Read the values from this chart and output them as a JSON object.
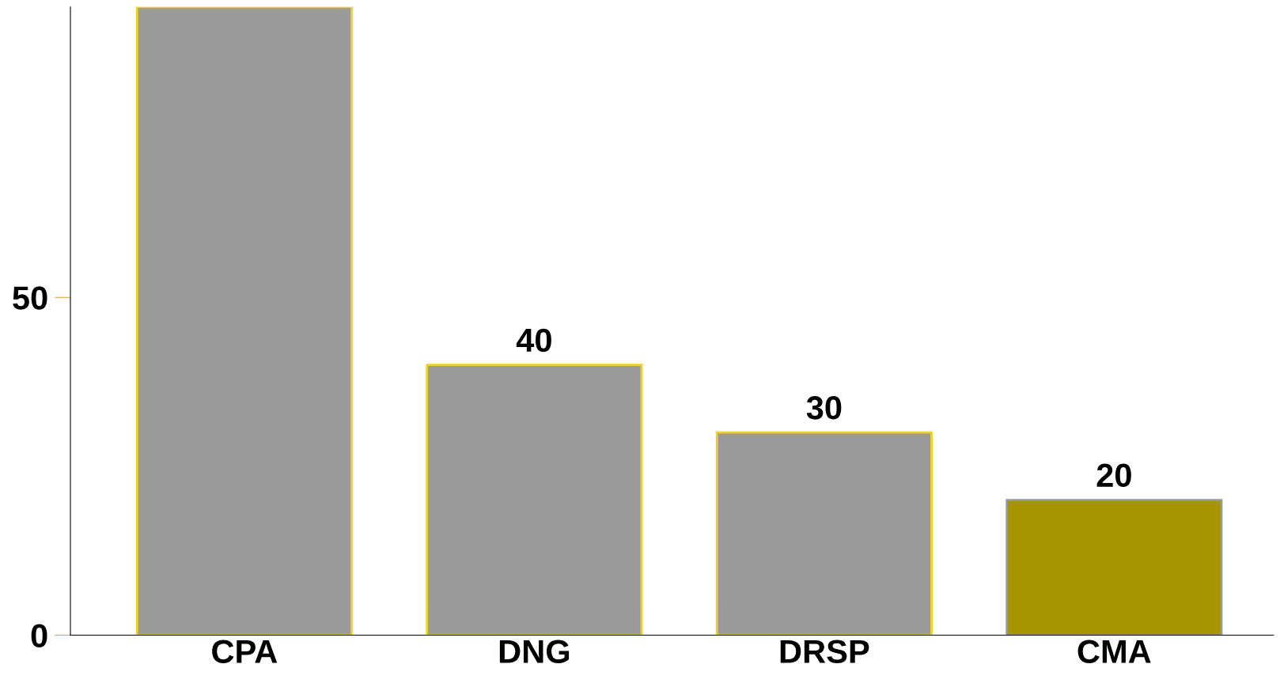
{
  "chart_data": {
    "type": "bar",
    "categories": [
      "CPA",
      "DNG",
      "DRSP",
      "CMA"
    ],
    "values": [
      93,
      40,
      30,
      20
    ],
    "colors": [
      "#9a9a9a",
      "#9a9a9a",
      "#9a9a9a",
      "#a69400"
    ],
    "value_labels": [
      null,
      "40",
      "30",
      "20"
    ],
    "ylim": [
      0,
      93
    ],
    "yticks": [
      0,
      50
    ],
    "grid": false
  }
}
